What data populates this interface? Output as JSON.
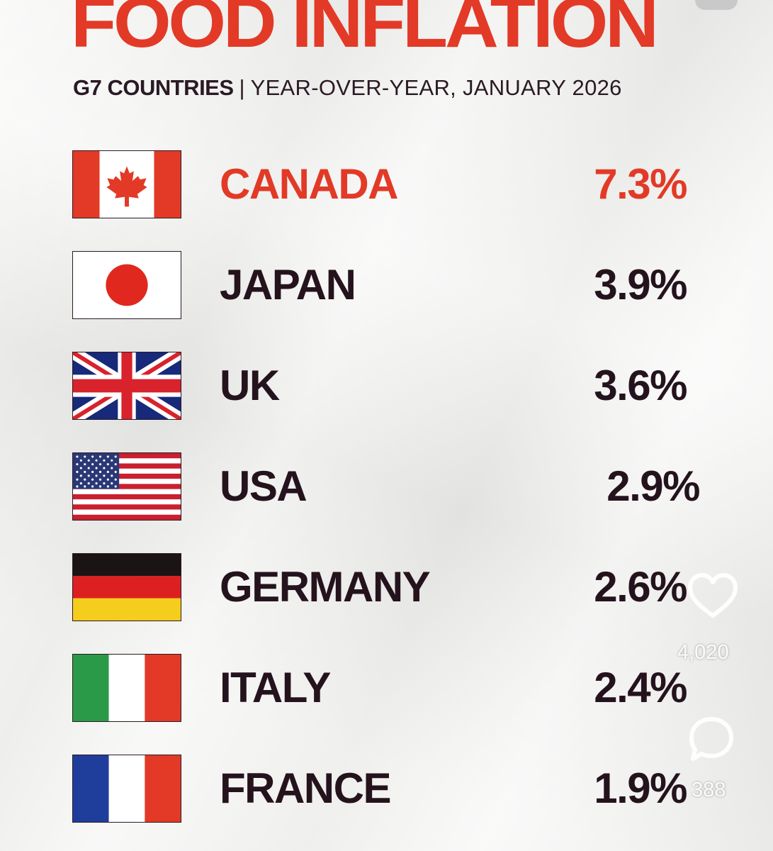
{
  "header": {
    "title": "FOOD INFLATION",
    "subtitle_bold": "G7 COUNTRIES",
    "subtitle_separator": "|",
    "subtitle_rest": "YEAR-OVER-YEAR, JANUARY 2026"
  },
  "rows": [
    {
      "country": "CANADA",
      "value": "7.3%",
      "flag": "canada-flag-icon",
      "highlight": true
    },
    {
      "country": "JAPAN",
      "value": "3.9%",
      "flag": "japan-flag-icon"
    },
    {
      "country": "UK",
      "value": "3.6%",
      "flag": "uk-flag-icon"
    },
    {
      "country": "USA",
      "value": "2.9%",
      "flag": "usa-flag-icon"
    },
    {
      "country": "GERMANY",
      "value": "2.6%",
      "flag": "germany-flag-icon"
    },
    {
      "country": "ITALY",
      "value": "2.4%",
      "flag": "italy-flag-icon"
    },
    {
      "country": "FRANCE",
      "value": "1.9%",
      "flag": "france-flag-icon"
    }
  ],
  "overlay": {
    "likes": "4,020",
    "comments": "388",
    "like_icon": "heart-icon",
    "comment_icon": "comment-bubble-icon"
  },
  "colors": {
    "accent_red": "#e23a26",
    "text_dark": "#24131d",
    "paper": "#eeeeec"
  }
}
